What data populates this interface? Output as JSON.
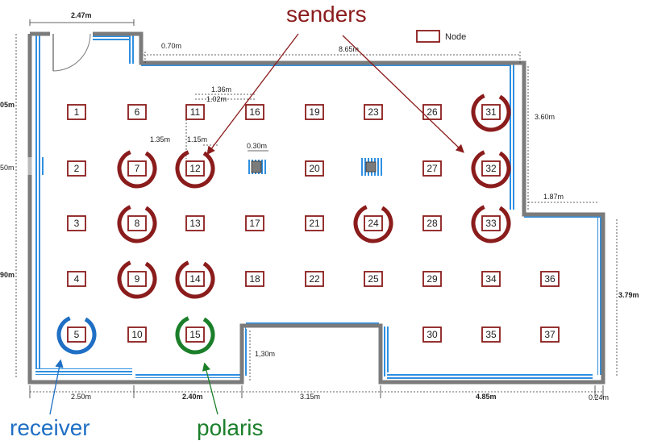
{
  "legend": {
    "label": "Node"
  },
  "annotations": {
    "senders": "senders",
    "receiver": "receiver",
    "polaris": "polaris"
  },
  "dimensions": {
    "top_left_width": "2.47m",
    "left_top_height": "05m",
    "top_offset": "0.70m",
    "top_width": "8.65m",
    "d_1_36": "1.36m",
    "d_1_02": "1.02m",
    "d_1_35": "1.35m",
    "d_1_15": "1.15m",
    "d_0_30": "0.30m",
    "left_mid": "50m",
    "right_upper": "3.60m",
    "right_step": "1.87m",
    "left_lower": "90m",
    "right_lower": "3.79m",
    "notch_depth": "1,30m",
    "bottom_1": "2.50m",
    "bottom_2": "2.40m",
    "bottom_3": "3.15m",
    "bottom_4": "4.85m",
    "bottom_5": "0.24m"
  },
  "colors": {
    "wall": "#7b7b7b",
    "absorber": "#2f8fe0",
    "node_border": "#8b1c1c",
    "sender": "#8b1c1c",
    "receiver": "#1f6fc4",
    "polaris": "#1b7f2a"
  },
  "nodes": [
    "1",
    "2",
    "3",
    "4",
    "5",
    "6",
    "7",
    "8",
    "9",
    "10",
    "11",
    "12",
    "13",
    "14",
    "15",
    "16",
    "17",
    "18",
    "19",
    "20",
    "21",
    "22",
    "23",
    "24",
    "25",
    "26",
    "27",
    "28",
    "29",
    "30",
    "31",
    "32",
    "33",
    "34",
    "35",
    "36",
    "37"
  ],
  "senders": [
    "7",
    "8",
    "9",
    "12",
    "14",
    "24",
    "31",
    "32",
    "33"
  ],
  "receivers": [
    "5"
  ],
  "polaris_nodes": [
    "15"
  ],
  "pillars": [
    {
      "id": "pillar-a",
      "near": "between 12 and 20"
    },
    {
      "id": "pillar-b",
      "near": "between 20 and 27"
    }
  ]
}
